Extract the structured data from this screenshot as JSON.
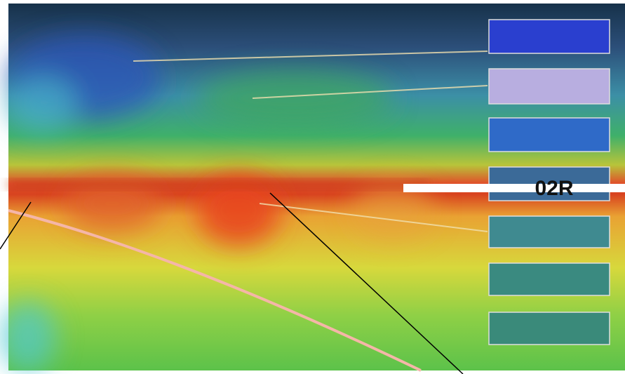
{
  "label": "02R"
}
